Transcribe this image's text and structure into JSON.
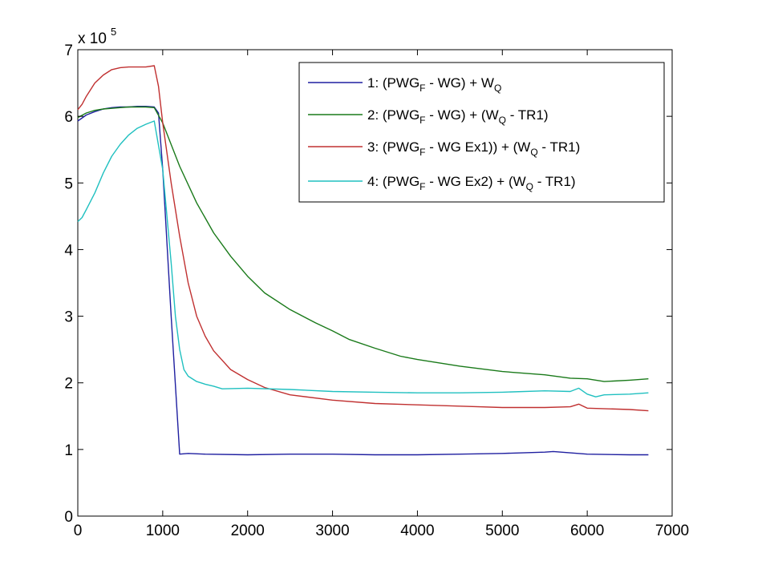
{
  "chart_data": {
    "type": "line",
    "title": "",
    "xlabel": "",
    "ylabel": "",
    "xlim": [
      0,
      7000
    ],
    "ylim": [
      0,
      7
    ],
    "y_exponent_label": "x 10",
    "y_exponent_power": "5",
    "x_ticks": [
      0,
      1000,
      2000,
      3000,
      4000,
      5000,
      6000,
      7000
    ],
    "y_ticks": [
      0,
      1,
      2,
      3,
      4,
      5,
      6,
      7
    ],
    "grid": false,
    "legend_position": "top-right",
    "series": [
      {
        "name": "1: (PWG_F - WG) + W_Q",
        "legend": [
          [
            "1: (PWG",
            ""
          ],
          [
            "F",
            "sub"
          ],
          [
            " - WG) + W",
            ""
          ],
          [
            "Q",
            "sub"
          ]
        ],
        "color": "#1f1fa0",
        "x": [
          0,
          100,
          200,
          300,
          400,
          500,
          600,
          700,
          800,
          900,
          950,
          1000,
          1100,
          1200,
          1300,
          1500,
          2000,
          2500,
          3000,
          3500,
          4000,
          4500,
          5000,
          5500,
          5600,
          6000,
          6500,
          6720
        ],
        "y": [
          5.93,
          6.02,
          6.07,
          6.11,
          6.13,
          6.14,
          6.14,
          6.15,
          6.15,
          6.14,
          6.05,
          5.2,
          3.0,
          0.93,
          0.94,
          0.93,
          0.92,
          0.93,
          0.93,
          0.92,
          0.92,
          0.93,
          0.94,
          0.96,
          0.97,
          0.93,
          0.92,
          0.92
        ]
      },
      {
        "name": "2: (PWG_F - WG) + (W_Q - TR1)",
        "legend": [
          [
            "2: (PWG",
            ""
          ],
          [
            "F",
            "sub"
          ],
          [
            " - WG) + (W",
            ""
          ],
          [
            "Q",
            "sub"
          ],
          [
            " - TR1)",
            ""
          ]
        ],
        "color": "#1a7a1a",
        "x": [
          0,
          100,
          200,
          300,
          400,
          500,
          600,
          700,
          800,
          900,
          1000,
          1200,
          1400,
          1600,
          1800,
          2000,
          2200,
          2500,
          2800,
          3000,
          3200,
          3500,
          3800,
          4000,
          4500,
          5000,
          5500,
          5800,
          6000,
          6200,
          6500,
          6720
        ],
        "y": [
          5.98,
          6.05,
          6.09,
          6.11,
          6.12,
          6.13,
          6.14,
          6.14,
          6.14,
          6.13,
          5.9,
          5.25,
          4.7,
          4.25,
          3.9,
          3.6,
          3.35,
          3.1,
          2.9,
          2.78,
          2.65,
          2.52,
          2.4,
          2.35,
          2.25,
          2.17,
          2.12,
          2.07,
          2.06,
          2.02,
          2.04,
          2.06
        ]
      },
      {
        "name": "3: (PWG_F - WG Ex1)) + (W_Q - TR1)",
        "legend": [
          [
            "3: (PWG",
            ""
          ],
          [
            "F",
            "sub"
          ],
          [
            " - WG Ex1)) + (W",
            ""
          ],
          [
            "Q",
            "sub"
          ],
          [
            " -  TR1)",
            ""
          ]
        ],
        "color": "#c03030",
        "x": [
          0,
          50,
          100,
          200,
          300,
          400,
          500,
          600,
          700,
          800,
          900,
          950,
          1000,
          1100,
          1200,
          1300,
          1400,
          1500,
          1600,
          1800,
          2000,
          2200,
          2500,
          3000,
          3500,
          4000,
          4500,
          5000,
          5500,
          5800,
          5900,
          6000,
          6500,
          6720
        ],
        "y": [
          6.1,
          6.18,
          6.3,
          6.5,
          6.62,
          6.7,
          6.73,
          6.74,
          6.74,
          6.74,
          6.76,
          6.45,
          5.9,
          5.0,
          4.2,
          3.5,
          3.0,
          2.7,
          2.48,
          2.2,
          2.05,
          1.93,
          1.82,
          1.74,
          1.69,
          1.67,
          1.65,
          1.63,
          1.63,
          1.64,
          1.68,
          1.62,
          1.6,
          1.58
        ]
      },
      {
        "name": "4: (PWG_F - WG Ex2) + (W_Q - TR1)",
        "legend": [
          [
            "4: (PWG",
            ""
          ],
          [
            "F",
            "sub"
          ],
          [
            " - WG Ex2) + (W",
            ""
          ],
          [
            "Q",
            "sub"
          ],
          [
            " - TR1)",
            ""
          ]
        ],
        "color": "#20c0c0",
        "x": [
          0,
          50,
          100,
          200,
          300,
          400,
          500,
          600,
          700,
          800,
          900,
          1000,
          1100,
          1150,
          1200,
          1250,
          1300,
          1400,
          1500,
          1600,
          1700,
          2000,
          2500,
          3000,
          3500,
          4000,
          4500,
          5000,
          5500,
          5800,
          5900,
          6000,
          6100,
          6200,
          6500,
          6720
        ],
        "y": [
          4.42,
          4.48,
          4.6,
          4.85,
          5.15,
          5.4,
          5.58,
          5.72,
          5.82,
          5.88,
          5.93,
          5.2,
          3.8,
          3.0,
          2.5,
          2.2,
          2.1,
          2.02,
          1.98,
          1.95,
          1.91,
          1.92,
          1.9,
          1.87,
          1.86,
          1.85,
          1.85,
          1.86,
          1.88,
          1.87,
          1.92,
          1.83,
          1.79,
          1.82,
          1.83,
          1.85
        ]
      }
    ]
  }
}
